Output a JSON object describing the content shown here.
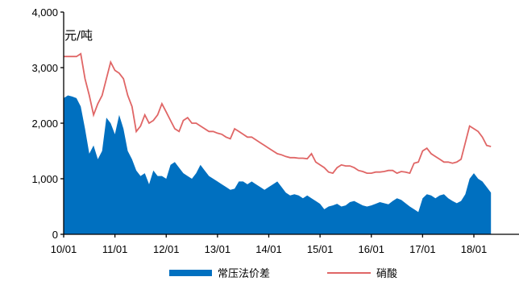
{
  "chart_data": {
    "type": "area+line",
    "unit_label": "元/吨",
    "ylim": [
      0,
      4000
    ],
    "y_ticks": [
      0,
      1000,
      2000,
      3000,
      4000
    ],
    "y_tick_labels": [
      "0",
      "1,000",
      "2,000",
      "3,000",
      "4,000"
    ],
    "xlim": [
      "2010-01",
      "2018-05"
    ],
    "x_ticks": [
      "2010-01",
      "2011-01",
      "2012-01",
      "2013-01",
      "2014-01",
      "2015-01",
      "2016-01",
      "2017-01",
      "2018-01"
    ],
    "x_tick_labels": [
      "10/01",
      "11/01",
      "12/01",
      "13/01",
      "14/01",
      "15/01",
      "16/01",
      "17/01",
      "18/01"
    ],
    "legend_position": "bottom",
    "series": [
      {
        "name": "常压法价差",
        "kind": "area",
        "color": "#0070C0",
        "points": [
          [
            "2010-01",
            2450
          ],
          [
            "2010-02",
            2500
          ],
          [
            "2010-03",
            2480
          ],
          [
            "2010-04",
            2450
          ],
          [
            "2010-05",
            2300
          ],
          [
            "2010-06",
            1900
          ],
          [
            "2010-07",
            1450
          ],
          [
            "2010-08",
            1600
          ],
          [
            "2010-09",
            1350
          ],
          [
            "2010-10",
            1500
          ],
          [
            "2010-11",
            2100
          ],
          [
            "2010-12",
            2000
          ],
          [
            "2011-01",
            1800
          ],
          [
            "2011-02",
            2150
          ],
          [
            "2011-03",
            1900
          ],
          [
            "2011-04",
            1500
          ],
          [
            "2011-05",
            1350
          ],
          [
            "2011-06",
            1150
          ],
          [
            "2011-07",
            1050
          ],
          [
            "2011-08",
            1100
          ],
          [
            "2011-09",
            900
          ],
          [
            "2011-10",
            1150
          ],
          [
            "2011-11",
            1050
          ],
          [
            "2011-12",
            1050
          ],
          [
            "2012-01",
            1000
          ],
          [
            "2012-02",
            1250
          ],
          [
            "2012-03",
            1300
          ],
          [
            "2012-04",
            1200
          ],
          [
            "2012-05",
            1100
          ],
          [
            "2012-06",
            1050
          ],
          [
            "2012-07",
            1000
          ],
          [
            "2012-08",
            1100
          ],
          [
            "2012-09",
            1250
          ],
          [
            "2012-10",
            1150
          ],
          [
            "2012-11",
            1050
          ],
          [
            "2012-12",
            1000
          ],
          [
            "2013-01",
            950
          ],
          [
            "2013-02",
            900
          ],
          [
            "2013-03",
            850
          ],
          [
            "2013-04",
            800
          ],
          [
            "2013-05",
            820
          ],
          [
            "2013-06",
            950
          ],
          [
            "2013-07",
            950
          ],
          [
            "2013-08",
            900
          ],
          [
            "2013-09",
            950
          ],
          [
            "2013-10",
            900
          ],
          [
            "2013-11",
            850
          ],
          [
            "2013-12",
            800
          ],
          [
            "2014-01",
            850
          ],
          [
            "2014-02",
            900
          ],
          [
            "2014-03",
            950
          ],
          [
            "2014-04",
            850
          ],
          [
            "2014-05",
            750
          ],
          [
            "2014-06",
            700
          ],
          [
            "2014-07",
            720
          ],
          [
            "2014-08",
            700
          ],
          [
            "2014-09",
            650
          ],
          [
            "2014-10",
            700
          ],
          [
            "2014-11",
            650
          ],
          [
            "2014-12",
            600
          ],
          [
            "2015-01",
            550
          ],
          [
            "2015-02",
            450
          ],
          [
            "2015-03",
            500
          ],
          [
            "2015-04",
            520
          ],
          [
            "2015-05",
            550
          ],
          [
            "2015-06",
            500
          ],
          [
            "2015-07",
            520
          ],
          [
            "2015-08",
            580
          ],
          [
            "2015-09",
            600
          ],
          [
            "2015-10",
            560
          ],
          [
            "2015-11",
            520
          ],
          [
            "2015-12",
            500
          ],
          [
            "2016-01",
            520
          ],
          [
            "2016-02",
            550
          ],
          [
            "2016-03",
            580
          ],
          [
            "2016-04",
            560
          ],
          [
            "2016-05",
            540
          ],
          [
            "2016-06",
            600
          ],
          [
            "2016-07",
            650
          ],
          [
            "2016-08",
            620
          ],
          [
            "2016-09",
            560
          ],
          [
            "2016-10",
            500
          ],
          [
            "2016-11",
            450
          ],
          [
            "2016-12",
            400
          ],
          [
            "2017-01",
            650
          ],
          [
            "2017-02",
            720
          ],
          [
            "2017-03",
            700
          ],
          [
            "2017-04",
            650
          ],
          [
            "2017-05",
            700
          ],
          [
            "2017-06",
            720
          ],
          [
            "2017-07",
            650
          ],
          [
            "2017-08",
            600
          ],
          [
            "2017-09",
            560
          ],
          [
            "2017-10",
            600
          ],
          [
            "2017-11",
            720
          ],
          [
            "2017-12",
            1000
          ],
          [
            "2018-01",
            1100
          ],
          [
            "2018-02",
            1000
          ],
          [
            "2018-03",
            950
          ],
          [
            "2018-04",
            850
          ],
          [
            "2018-05",
            750
          ]
        ]
      },
      {
        "name": "硝酸",
        "kind": "line",
        "color": "#E06666",
        "points": [
          [
            "2010-01",
            3200
          ],
          [
            "2010-02",
            3200
          ],
          [
            "2010-03",
            3200
          ],
          [
            "2010-04",
            3200
          ],
          [
            "2010-05",
            3250
          ],
          [
            "2010-06",
            2800
          ],
          [
            "2010-07",
            2500
          ],
          [
            "2010-08",
            2150
          ],
          [
            "2010-09",
            2350
          ],
          [
            "2010-10",
            2500
          ],
          [
            "2010-11",
            2800
          ],
          [
            "2010-12",
            3100
          ],
          [
            "2011-01",
            2950
          ],
          [
            "2011-02",
            2900
          ],
          [
            "2011-03",
            2800
          ],
          [
            "2011-04",
            2500
          ],
          [
            "2011-05",
            2300
          ],
          [
            "2011-06",
            1850
          ],
          [
            "2011-07",
            1950
          ],
          [
            "2011-08",
            2150
          ],
          [
            "2011-09",
            2000
          ],
          [
            "2011-10",
            2050
          ],
          [
            "2011-11",
            2150
          ],
          [
            "2011-12",
            2350
          ],
          [
            "2012-01",
            2200
          ],
          [
            "2012-02",
            2050
          ],
          [
            "2012-03",
            1900
          ],
          [
            "2012-04",
            1850
          ],
          [
            "2012-05",
            2050
          ],
          [
            "2012-06",
            2100
          ],
          [
            "2012-07",
            2000
          ],
          [
            "2012-08",
            2000
          ],
          [
            "2012-09",
            1950
          ],
          [
            "2012-10",
            1900
          ],
          [
            "2012-11",
            1850
          ],
          [
            "2012-12",
            1850
          ],
          [
            "2013-01",
            1820
          ],
          [
            "2013-02",
            1800
          ],
          [
            "2013-03",
            1750
          ],
          [
            "2013-04",
            1720
          ],
          [
            "2013-05",
            1900
          ],
          [
            "2013-06",
            1850
          ],
          [
            "2013-07",
            1800
          ],
          [
            "2013-08",
            1750
          ],
          [
            "2013-09",
            1750
          ],
          [
            "2013-10",
            1700
          ],
          [
            "2013-11",
            1650
          ],
          [
            "2013-12",
            1600
          ],
          [
            "2014-01",
            1550
          ],
          [
            "2014-02",
            1500
          ],
          [
            "2014-03",
            1450
          ],
          [
            "2014-04",
            1430
          ],
          [
            "2014-05",
            1400
          ],
          [
            "2014-06",
            1380
          ],
          [
            "2014-07",
            1380
          ],
          [
            "2014-08",
            1370
          ],
          [
            "2014-09",
            1370
          ],
          [
            "2014-10",
            1360
          ],
          [
            "2014-11",
            1450
          ],
          [
            "2014-12",
            1300
          ],
          [
            "2015-01",
            1250
          ],
          [
            "2015-02",
            1200
          ],
          [
            "2015-03",
            1120
          ],
          [
            "2015-04",
            1100
          ],
          [
            "2015-05",
            1200
          ],
          [
            "2015-06",
            1250
          ],
          [
            "2015-07",
            1230
          ],
          [
            "2015-08",
            1230
          ],
          [
            "2015-09",
            1200
          ],
          [
            "2015-10",
            1150
          ],
          [
            "2015-11",
            1130
          ],
          [
            "2015-12",
            1100
          ],
          [
            "2016-01",
            1100
          ],
          [
            "2016-02",
            1120
          ],
          [
            "2016-03",
            1120
          ],
          [
            "2016-04",
            1130
          ],
          [
            "2016-05",
            1150
          ],
          [
            "2016-06",
            1150
          ],
          [
            "2016-07",
            1100
          ],
          [
            "2016-08",
            1130
          ],
          [
            "2016-09",
            1120
          ],
          [
            "2016-10",
            1100
          ],
          [
            "2016-11",
            1280
          ],
          [
            "2016-12",
            1300
          ],
          [
            "2017-01",
            1500
          ],
          [
            "2017-02",
            1550
          ],
          [
            "2017-03",
            1450
          ],
          [
            "2017-04",
            1400
          ],
          [
            "2017-05",
            1350
          ],
          [
            "2017-06",
            1300
          ],
          [
            "2017-07",
            1300
          ],
          [
            "2017-08",
            1280
          ],
          [
            "2017-09",
            1300
          ],
          [
            "2017-10",
            1350
          ],
          [
            "2017-11",
            1650
          ],
          [
            "2017-12",
            1950
          ],
          [
            "2018-01",
            1900
          ],
          [
            "2018-02",
            1850
          ],
          [
            "2018-03",
            1750
          ],
          [
            "2018-04",
            1600
          ],
          [
            "2018-05",
            1580
          ]
        ]
      }
    ]
  }
}
